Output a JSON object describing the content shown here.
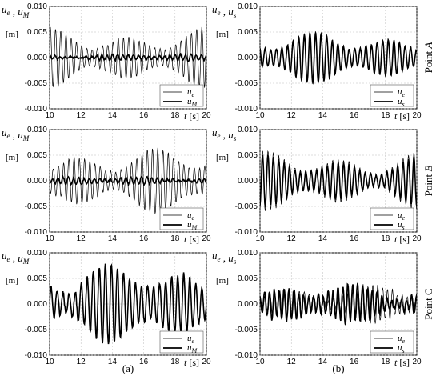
{
  "captions": {
    "left": "(a)",
    "right": "(b)"
  },
  "rows": [
    {
      "side_label": "Point A"
    },
    {
      "side_label": "Point B"
    },
    {
      "side_label": "Point C"
    }
  ],
  "chart_data": [
    {
      "type": "line",
      "id": "a_A",
      "ylabel": "u_e , u_M",
      "yunit": "[m]",
      "xlabel": "t [s]",
      "xlim": [
        10,
        20
      ],
      "ylim": [
        -0.01,
        0.01
      ],
      "xticks": [
        "10",
        "12",
        "14",
        "16",
        "18",
        "20"
      ],
      "yticks": [
        "0.010",
        "0.005",
        "0.000",
        "-0.005",
        "-0.010"
      ],
      "series": [
        {
          "name": "u_e",
          "amp": 0.0045,
          "freq": 3.0,
          "seed": 1,
          "noise": 0.0006,
          "style": "thin"
        },
        {
          "name": "u_M",
          "amp": 0.0005,
          "freq": 3.0,
          "seed": 2,
          "noise": 0.0004,
          "style": "thick"
        }
      ]
    },
    {
      "type": "line",
      "id": "b_A",
      "ylabel": "u_e , u_s",
      "yunit": "[m]",
      "xlabel": "t [s]",
      "xlim": [
        10,
        20
      ],
      "ylim": [
        -0.01,
        0.01
      ],
      "xticks": [
        "10",
        "12",
        "14",
        "16",
        "18",
        "20"
      ],
      "yticks": [
        "0.010",
        "0.005",
        "0.000",
        "-0.005",
        "-0.010"
      ],
      "series": [
        {
          "name": "u_e",
          "amp": 0.004,
          "freq": 2.8,
          "seed": 3,
          "noise": 0.0005,
          "style": "thin"
        },
        {
          "name": "u_s",
          "amp": 0.0038,
          "freq": 2.8,
          "seed": 3,
          "noise": 0.0004,
          "style": "thick"
        }
      ]
    },
    {
      "type": "line",
      "id": "a_B",
      "ylabel": "u_e , u_M",
      "yunit": "[m]",
      "xlabel": "t [s]",
      "xlim": [
        10,
        20
      ],
      "ylim": [
        -0.01,
        0.01
      ],
      "xticks": [
        "10",
        "12",
        "14",
        "16",
        "18",
        "20"
      ],
      "yticks": [
        "0.010",
        "0.005",
        "0.000",
        "-0.005",
        "-0.010"
      ],
      "series": [
        {
          "name": "u_e",
          "amp": 0.005,
          "freq": 3.0,
          "seed": 5,
          "noise": 0.0006,
          "style": "thin"
        },
        {
          "name": "u_M",
          "amp": 0.0006,
          "freq": 3.0,
          "seed": 6,
          "noise": 0.0004,
          "style": "thick"
        }
      ]
    },
    {
      "type": "line",
      "id": "b_B",
      "ylabel": "u_e , u_s",
      "yunit": "[m]",
      "xlabel": "t [s]",
      "xlim": [
        10,
        20
      ],
      "ylim": [
        -0.01,
        0.01
      ],
      "xticks": [
        "10",
        "12",
        "14",
        "16",
        "18",
        "20"
      ],
      "yticks": [
        "0.010",
        "0.005",
        "0.000",
        "-0.005",
        "-0.010"
      ],
      "series": [
        {
          "name": "u_e",
          "amp": 0.0045,
          "freq": 2.9,
          "seed": 7,
          "noise": 0.0005,
          "style": "thin"
        },
        {
          "name": "u_s",
          "amp": 0.0038,
          "freq": 2.9,
          "seed": 7,
          "noise": 0.0005,
          "style": "thick"
        }
      ]
    },
    {
      "type": "line",
      "id": "a_C",
      "ylabel": "u_e , u_M",
      "yunit": "[m]",
      "xlabel": "t [s]",
      "xlim": [
        10,
        20
      ],
      "ylim": [
        -0.01,
        0.01
      ],
      "xticks": [
        "10",
        "12",
        "14",
        "16",
        "18",
        "20"
      ],
      "yticks": [
        "0.010",
        "0.005",
        "0.000",
        "-0.005",
        "-0.010"
      ],
      "series": [
        {
          "name": "u_e",
          "amp": 0.006,
          "freq": 2.6,
          "seed": 9,
          "noise": 0.0007,
          "style": "thin"
        },
        {
          "name": "u_M",
          "amp": 0.006,
          "freq": 2.6,
          "seed": 9,
          "noise": 0.001,
          "style": "thick"
        }
      ]
    },
    {
      "type": "line",
      "id": "b_C",
      "ylabel": "u_e , u_s",
      "yunit": "[m]",
      "xlabel": "t [s]",
      "xlim": [
        10,
        20
      ],
      "ylim": [
        -0.01,
        0.01
      ],
      "xticks": [
        "10",
        "12",
        "14",
        "16",
        "18",
        "20"
      ],
      "yticks": [
        "0.010",
        "0.005",
        "0.000",
        "-0.005",
        "-0.010"
      ],
      "series": [
        {
          "name": "u_e",
          "amp": 0.003,
          "freq": 3.2,
          "seed": 11,
          "noise": 0.0008,
          "style": "thin"
        },
        {
          "name": "u_s",
          "amp": 0.003,
          "freq": 3.2,
          "seed": 12,
          "noise": 0.0012,
          "style": "thick"
        }
      ]
    }
  ]
}
